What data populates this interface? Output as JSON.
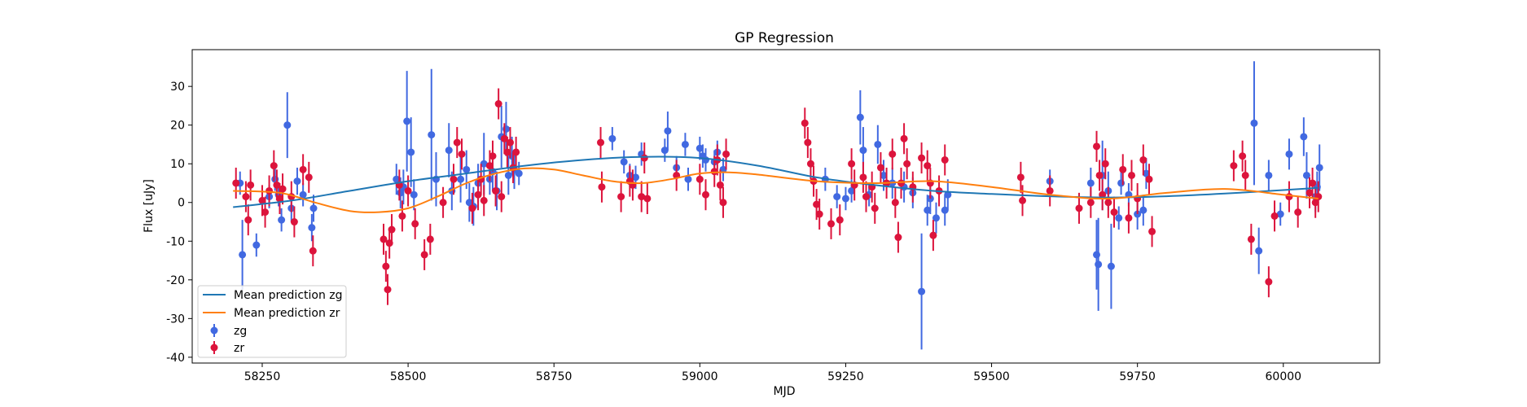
{
  "chart_data": {
    "type": "scatter",
    "title": "GP Regression",
    "xlabel": "MJD",
    "ylabel": "Flux [uJy]",
    "xlim": [
      58130,
      60165
    ],
    "ylim": [
      -41.5,
      39.5
    ],
    "xticks": [
      58250,
      58500,
      58750,
      59000,
      59250,
      59500,
      59750,
      60000
    ],
    "yticks": [
      -40,
      -30,
      -20,
      -10,
      0,
      10,
      20,
      30
    ],
    "grid": false,
    "legend": {
      "placement": "lower-left",
      "entries": [
        "Mean prediction zg",
        "Mean prediction zr",
        "zg",
        "zr"
      ]
    },
    "colors": {
      "zg_line": "#1f77b4",
      "zr_line": "#ff7f0e",
      "zg_points": "#4169e1",
      "zr_points": "#dc143c"
    },
    "lines": [
      {
        "name": "Mean prediction zg",
        "x": [
          58200,
          58300,
          58400,
          58500,
          58600,
          58700,
          58800,
          58900,
          59000,
          59100,
          59200,
          59300,
          59400,
          59500,
          59600,
          59700,
          59800,
          59900,
          60000,
          60060
        ],
        "y": [
          -1.2,
          0.5,
          3.0,
          5.5,
          7.5,
          9.5,
          11.0,
          11.8,
          11.5,
          9.5,
          6.5,
          4.5,
          3.0,
          2.2,
          1.6,
          1.3,
          1.6,
          2.3,
          3.2,
          3.8
        ]
      },
      {
        "name": "Mean prediction zr",
        "x": [
          58200,
          58280,
          58340,
          58400,
          58450,
          58500,
          58550,
          58600,
          58650,
          58700,
          58750,
          58800,
          58850,
          58900,
          58950,
          59000,
          59050,
          59100,
          59200,
          59300,
          59400,
          59500,
          59600,
          59700,
          59800,
          59900,
          60000,
          60060
        ],
        "y": [
          3.0,
          2.5,
          0.0,
          -2.2,
          -2.5,
          -1.5,
          1.5,
          5.0,
          7.5,
          8.8,
          8.5,
          7.0,
          5.5,
          5.0,
          6.0,
          7.5,
          7.8,
          7.2,
          5.5,
          5.0,
          5.5,
          4.0,
          2.0,
          1.0,
          2.5,
          3.5,
          2.0,
          1.0
        ]
      }
    ],
    "series": [
      {
        "name": "zg",
        "x": [
          58212,
          58216,
          58240,
          58262,
          58272,
          58278,
          58283,
          58293,
          58300,
          58310,
          58320,
          58335,
          58338,
          58480,
          58487,
          58492,
          58498,
          58505,
          58510,
          58540,
          58548,
          58570,
          58575,
          58590,
          58600,
          58605,
          58612,
          58620,
          58630,
          58640,
          58645,
          58652,
          58660,
          58668,
          58672,
          58678,
          58682,
          58690,
          58850,
          58870,
          58880,
          58890,
          58900,
          58940,
          58945,
          58960,
          58975,
          58980,
          59000,
          59005,
          59010,
          59025,
          59030,
          59040,
          59215,
          59235,
          59250,
          59260,
          59275,
          59280,
          59290,
          59305,
          59315,
          59330,
          59350,
          59365,
          59380,
          59390,
          59395,
          59405,
          59420,
          59425,
          59600,
          59670,
          59680,
          59683,
          59690,
          59700,
          59705,
          59718,
          59722,
          59735,
          59750,
          59760,
          59765,
          59950,
          59958,
          59975,
          59995,
          60010,
          60035,
          60040,
          60055,
          60058,
          60062
        ],
        "y": [
          5,
          -13.5,
          -11,
          1.5,
          6,
          2,
          -4.5,
          20,
          -1.5,
          5.5,
          2,
          -6.5,
          -1.5,
          6,
          2.5,
          4,
          21,
          13,
          2,
          17.5,
          6,
          13.5,
          3,
          6,
          8.5,
          0,
          -1,
          5,
          10,
          6,
          8,
          3,
          17,
          19,
          7,
          12,
          8.5,
          7.5,
          16.5,
          10.5,
          7,
          6.5,
          12.5,
          13.5,
          18.5,
          9,
          15,
          6,
          14,
          12,
          11,
          10.5,
          13,
          8.5,
          6,
          1.5,
          1,
          3,
          22,
          13.5,
          2,
          15,
          7,
          5,
          4,
          2.5,
          -23,
          -2,
          1,
          -4,
          -2,
          2,
          5.5,
          5,
          -13.5,
          -16,
          7,
          3,
          -16.5,
          -4,
          5,
          2,
          -3,
          -2,
          7.5,
          20.5,
          -12.5,
          7,
          -3,
          12.5,
          17,
          7,
          1.5,
          4,
          9
        ],
        "yerr": [
          3,
          9,
          3,
          3,
          3,
          3,
          3,
          8.5,
          3.5,
          3.5,
          3,
          3.5,
          3.5,
          4,
          4,
          4.5,
          13,
          9,
          4,
          17,
          7,
          7,
          5,
          6,
          5,
          5,
          5,
          5,
          8,
          4,
          5,
          5,
          8,
          7,
          5,
          5,
          5,
          3,
          3,
          3,
          3,
          3,
          3,
          3,
          5,
          3,
          3,
          3,
          3,
          3,
          3,
          3,
          3,
          3,
          3,
          3,
          3,
          3,
          7,
          6,
          3,
          5,
          4,
          4,
          4,
          4,
          15,
          4,
          4,
          4,
          4,
          4,
          3,
          4,
          9,
          12,
          9,
          5,
          11,
          3,
          3,
          3,
          4,
          4,
          4,
          16,
          6,
          4,
          3,
          4,
          5,
          6,
          4,
          4,
          6
        ]
      },
      {
        "name": "zr",
        "x": [
          58205,
          58222,
          58226,
          58230,
          58250,
          58255,
          58262,
          58270,
          58275,
          58280,
          58285,
          58300,
          58305,
          58320,
          58330,
          58337,
          58458,
          58462,
          58465,
          58468,
          58472,
          58485,
          58490,
          58500,
          58512,
          58528,
          58538,
          58560,
          58578,
          58584,
          58592,
          58610,
          58620,
          58625,
          58630,
          58640,
          58645,
          58650,
          58655,
          58660,
          58665,
          58670,
          58675,
          58680,
          58685,
          58830,
          58832,
          58865,
          58880,
          58885,
          58900,
          58905,
          58910,
          58960,
          59000,
          59010,
          59025,
          59030,
          59035,
          59040,
          59045,
          59180,
          59185,
          59190,
          59195,
          59200,
          59205,
          59225,
          59240,
          59260,
          59265,
          59280,
          59285,
          59295,
          59300,
          59310,
          59320,
          59330,
          59335,
          59340,
          59345,
          59350,
          59355,
          59365,
          59380,
          59390,
          59395,
          59400,
          59410,
          59420,
          59550,
          59553,
          59600,
          59650,
          59670,
          59680,
          59685,
          59690,
          59695,
          59700,
          59710,
          59725,
          59735,
          59740,
          59750,
          59760,
          59770,
          59775,
          59915,
          59930,
          59935,
          59945,
          59975,
          59985,
          60010,
          60025,
          60045,
          60050,
          60055,
          60060
        ],
        "y": [
          5,
          1.5,
          -4.5,
          4.5,
          0.5,
          -2.5,
          3,
          9.5,
          4.5,
          1,
          3.5,
          1.5,
          -5,
          8.5,
          6.5,
          -12.5,
          -9.5,
          -16.5,
          -22.5,
          -10.5,
          -7,
          4.5,
          -3.5,
          3,
          -5.5,
          -13.5,
          -9.5,
          0,
          6,
          15.5,
          12.5,
          -1.5,
          2,
          6,
          0.5,
          9.5,
          12,
          3,
          25.5,
          1.5,
          16.5,
          13,
          15.5,
          9,
          13,
          15.5,
          4,
          1.5,
          5.5,
          4.5,
          1.5,
          11.5,
          1,
          7,
          6,
          2,
          8,
          11,
          4.5,
          0,
          12.5,
          20.5,
          15.5,
          10,
          5.5,
          -0.5,
          -3,
          -5.5,
          -4.5,
          10,
          4.5,
          6.5,
          1.5,
          4,
          -1.5,
          9,
          5,
          12.5,
          0,
          -9,
          5,
          16.5,
          10,
          4,
          11.5,
          9.5,
          5,
          -8.5,
          3,
          11,
          6.5,
          0.5,
          3,
          -1.5,
          0,
          14.5,
          7,
          2,
          10,
          0,
          -2.5,
          8.5,
          -4,
          7,
          1,
          11,
          6,
          -7.5,
          9.5,
          12,
          7,
          -9.5,
          -20.5,
          -3.5,
          1.5,
          -2.5,
          2.5,
          5,
          0,
          1.5
        ]
      }
    ]
  }
}
